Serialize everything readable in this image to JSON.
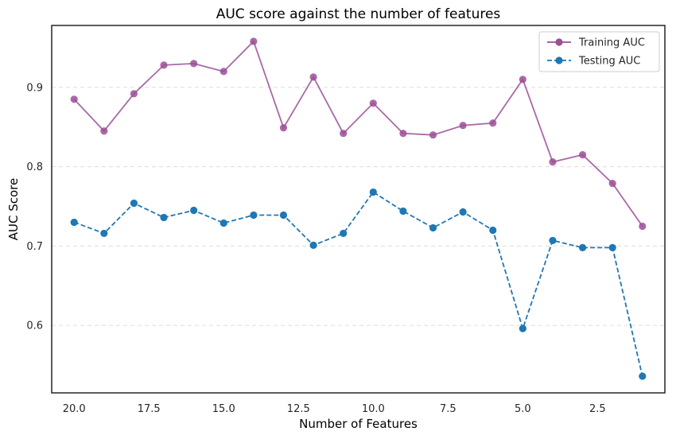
{
  "chart_data": {
    "type": "line",
    "title": "AUC score against the number of features",
    "xlabel": "Number of Features",
    "ylabel": "AUC Score",
    "x": [
      20,
      19,
      18,
      17,
      16,
      15,
      14,
      13,
      12,
      11,
      10,
      9,
      8,
      7,
      6,
      5,
      4,
      3,
      2,
      1
    ],
    "x_reversed": true,
    "xlim": [
      20.75,
      0.25
    ],
    "ylim": [
      0.515,
      0.978
    ],
    "x_ticks": [
      20.0,
      17.5,
      15.0,
      12.5,
      10.0,
      7.5,
      5.0,
      2.5
    ],
    "x_tick_labels": [
      "20.0",
      "17.5",
      "15.0",
      "12.5",
      "10.0",
      "7.5",
      "5.0",
      "2.5"
    ],
    "y_ticks": [
      0.6,
      0.7,
      0.8,
      0.9
    ],
    "y_tick_labels": [
      "0.6",
      "0.7",
      "0.8",
      "0.9"
    ],
    "grid": "horizontal dashed",
    "legend_position": "top-right",
    "series": [
      {
        "name": "Training AUC",
        "color": "#9b4f96",
        "line_style": "solid",
        "marker": "circle",
        "values": [
          0.885,
          0.845,
          0.892,
          0.928,
          0.93,
          0.92,
          0.958,
          0.849,
          0.913,
          0.842,
          0.88,
          0.842,
          0.84,
          0.852,
          0.855,
          0.91,
          0.806,
          0.815,
          0.779,
          0.725
        ]
      },
      {
        "name": "Testing AUC",
        "color": "#1f77b4",
        "line_style": "dashed",
        "marker": "circle",
        "values": [
          0.73,
          0.716,
          0.754,
          0.736,
          0.745,
          0.729,
          0.739,
          0.739,
          0.701,
          0.716,
          0.768,
          0.744,
          0.723,
          0.743,
          0.72,
          0.596,
          0.707,
          0.698,
          0.698,
          0.536
        ]
      }
    ]
  }
}
